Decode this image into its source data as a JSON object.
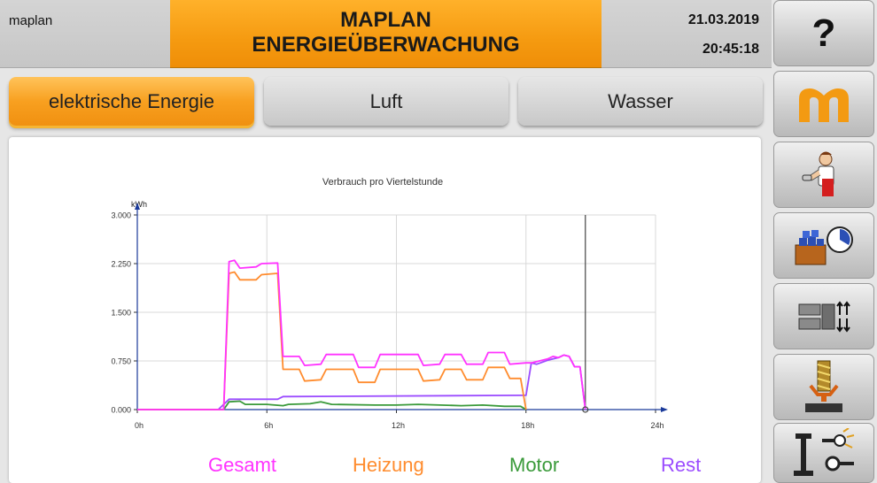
{
  "header": {
    "left_label": "maplan",
    "title_line1": "MAPLAN",
    "title_line2": "ENERGIEÜBERWACHUNG",
    "date": "21.03.2019",
    "time": "20:45:18"
  },
  "tabs": [
    {
      "label": "elektrische Energie",
      "active": true
    },
    {
      "label": "Luft",
      "active": false
    },
    {
      "label": "Wasser",
      "active": false
    }
  ],
  "sidebar": [
    {
      "icon": "help-icon",
      "label": "?"
    },
    {
      "icon": "maplan-logo-icon"
    },
    {
      "icon": "operator-icon"
    },
    {
      "icon": "production-timer-icon"
    },
    {
      "icon": "mold-settings-icon"
    },
    {
      "icon": "injection-unit-icon"
    },
    {
      "icon": "clamp-unit-icon"
    }
  ],
  "colors": {
    "accent": "#f59a10",
    "gesamt": "#ff33ff",
    "heizung": "#ff8c2e",
    "motor": "#3a9a3a",
    "rest": "#9b4cff"
  },
  "chart_data": {
    "type": "line",
    "title": "Verbrauch pro Viertelstunde",
    "ylabel": "kWh",
    "xlim": [
      0,
      24
    ],
    "ylim": [
      0,
      3
    ],
    "x_ticks": [
      "0h",
      "6h",
      "12h",
      "18h",
      "24h"
    ],
    "y_ticks": [
      "0.000",
      "0.750",
      "1.500",
      "2.250",
      "3.000"
    ],
    "current_time_marker": 20.75,
    "grid": true,
    "series": [
      {
        "name": "Gesamt",
        "color": "#ff33ff",
        "points": [
          [
            0,
            0
          ],
          [
            4,
            0
          ],
          [
            4.25,
            2.28
          ],
          [
            4.5,
            2.3
          ],
          [
            4.75,
            2.18
          ],
          [
            5.5,
            2.2
          ],
          [
            5.75,
            2.25
          ],
          [
            6.5,
            2.26
          ],
          [
            6.75,
            0.82
          ],
          [
            7.5,
            0.82
          ],
          [
            7.75,
            0.68
          ],
          [
            8.5,
            0.7
          ],
          [
            8.75,
            0.85
          ],
          [
            10,
            0.85
          ],
          [
            10.25,
            0.65
          ],
          [
            11,
            0.65
          ],
          [
            11.25,
            0.85
          ],
          [
            13,
            0.85
          ],
          [
            13.25,
            0.68
          ],
          [
            14,
            0.7
          ],
          [
            14.25,
            0.85
          ],
          [
            15,
            0.85
          ],
          [
            15.25,
            0.7
          ],
          [
            16,
            0.7
          ],
          [
            16.25,
            0.88
          ],
          [
            17,
            0.88
          ],
          [
            17.25,
            0.7
          ],
          [
            18,
            0.72
          ],
          [
            18.25,
            0.72
          ],
          [
            19,
            0.78
          ],
          [
            19.25,
            0.82
          ],
          [
            19.5,
            0.8
          ],
          [
            19.75,
            0.84
          ],
          [
            20,
            0.82
          ],
          [
            20.25,
            0.66
          ],
          [
            20.5,
            0.66
          ],
          [
            20.75,
            0
          ]
        ]
      },
      {
        "name": "Heizung",
        "color": "#ff8c2e",
        "points": [
          [
            0,
            0
          ],
          [
            4,
            0
          ],
          [
            4.25,
            2.1
          ],
          [
            4.5,
            2.12
          ],
          [
            4.75,
            2.0
          ],
          [
            5.5,
            2.0
          ],
          [
            5.75,
            2.08
          ],
          [
            6.5,
            2.1
          ],
          [
            6.75,
            0.62
          ],
          [
            7.5,
            0.62
          ],
          [
            7.75,
            0.44
          ],
          [
            8.5,
            0.46
          ],
          [
            8.75,
            0.62
          ],
          [
            10,
            0.62
          ],
          [
            10.25,
            0.42
          ],
          [
            11,
            0.42
          ],
          [
            11.25,
            0.62
          ],
          [
            13,
            0.62
          ],
          [
            13.25,
            0.44
          ],
          [
            14,
            0.46
          ],
          [
            14.25,
            0.62
          ],
          [
            15,
            0.62
          ],
          [
            15.25,
            0.46
          ],
          [
            16,
            0.46
          ],
          [
            16.25,
            0.65
          ],
          [
            17,
            0.65
          ],
          [
            17.25,
            0.48
          ],
          [
            17.75,
            0.48
          ],
          [
            18,
            0
          ]
        ]
      },
      {
        "name": "Motor",
        "color": "#3a9a3a",
        "points": [
          [
            0,
            0
          ],
          [
            4,
            0
          ],
          [
            4.25,
            0.12
          ],
          [
            4.75,
            0.13
          ],
          [
            5,
            0.08
          ],
          [
            6,
            0.08
          ],
          [
            6.75,
            0.06
          ],
          [
            7,
            0.08
          ],
          [
            8,
            0.09
          ],
          [
            8.5,
            0.12
          ],
          [
            9,
            0.08
          ],
          [
            11,
            0.07
          ],
          [
            12,
            0.07
          ],
          [
            13,
            0.08
          ],
          [
            15,
            0.06
          ],
          [
            16,
            0.07
          ],
          [
            17,
            0.05
          ],
          [
            17.75,
            0.05
          ],
          [
            18,
            0
          ]
        ]
      },
      {
        "name": "Rest",
        "color": "#9b4cff",
        "points": [
          [
            0,
            0
          ],
          [
            3.75,
            0
          ],
          [
            4.25,
            0.16
          ],
          [
            6.5,
            0.16
          ],
          [
            6.75,
            0.2
          ],
          [
            17.75,
            0.22
          ],
          [
            18,
            0.22
          ],
          [
            18.25,
            0.72
          ],
          [
            18.5,
            0.7
          ],
          [
            19,
            0.76
          ],
          [
            19.5,
            0.8
          ],
          [
            19.75,
            0.84
          ],
          [
            20,
            0.82
          ],
          [
            20.25,
            0.66
          ],
          [
            20.5,
            0.66
          ],
          [
            20.75,
            0
          ]
        ]
      }
    ]
  }
}
